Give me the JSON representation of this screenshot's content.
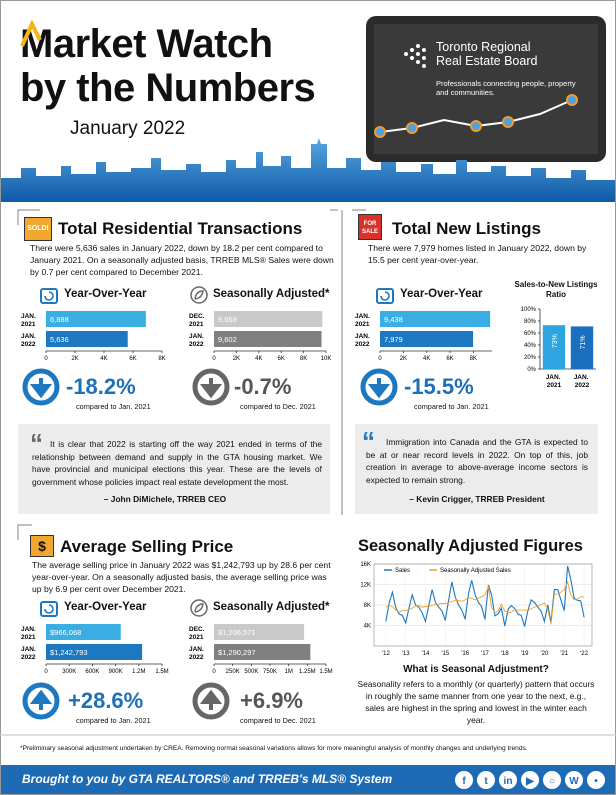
{
  "header": {
    "title_line1": "Market Watch",
    "title_line2": "by the Numbers",
    "date": "January 2022"
  },
  "logo": {
    "name_line1": "Toronto Regional",
    "name_line2": "Real Estate Board",
    "tagline": "Professionals connecting people, property and communities."
  },
  "transactions": {
    "icon": "SOLD!",
    "title": "Total Residential Transactions",
    "text": "There were 5,636 sales in January 2022, down by 18.2 per cent compared to January 2021. On a seasonally adjusted basis, TRREB MLS® Sales were down by 0.7 per cent compared to December 2021.",
    "yoy_label": "Year-Over-Year",
    "sa_label": "Seasonally Adjusted*",
    "yoy_change": "-18.2%",
    "yoy_note": "compared to Jan. 2021",
    "sa_change": "-0.7%",
    "sa_note": "compared to Dec. 2021"
  },
  "listings": {
    "icon": "FOR SALE",
    "title": "Total New Listings",
    "text": "There were 7,979 homes listed in January 2022, down by 15.5 per cent year-over-year.",
    "yoy_label": "Year-Over-Year",
    "yoy_change": "-15.5%",
    "yoy_note": "compared to Jan. 2021",
    "ratio_title": "Sales-to-New Listings Ratio"
  },
  "quotes": [
    {
      "text": "It is clear that 2022 is starting off the way 2021 ended in terms of the relationship between demand and supply in the GTA housing market. We have provincial and municipal elections this year. These are the levels of government whose policies impact real estate development the most.",
      "author": "– John DiMichele, TRREB CEO"
    },
    {
      "text": "Immigration into Canada and the GTA is expected to be at or near record levels in 2022. On top of this, job creation in average to above-average income sectors is expected to remain strong.",
      "author": "– Kevin Crigger, TRREB President"
    }
  ],
  "price": {
    "icon": "$",
    "title": "Average Selling Price",
    "text": "The average selling price in January 2022 was $1,242,793 up by 28.6 per cent year-over-year. On a seasonally adjusted basis, the average selling price was up by 6.9 per cent over December 2021.",
    "yoy_label": "Year-Over-Year",
    "sa_label": "Seasonally Adjusted*",
    "yoy_change": "+28.6%",
    "yoy_note": "compared to Jan. 2021",
    "sa_change": "+6.9%",
    "sa_note": "compared to Dec. 2021"
  },
  "seasonal": {
    "title": "Seasonally Adjusted Figures",
    "question": "What is Seasonal Adjustment?",
    "answer": "Seasonality refers to a monthly (or quarterly) pattern that occurs in roughly the same manner from one year to the next, e.g., sales are highest in the spring and lowest in the winter each year."
  },
  "footnote": "*Preliminary seasonal adjustment undertaken by CREA. Removing normal seasonal variations allows for more meaningful analysis of monthly changes and underlying trends.",
  "footer": "Brought to you by GTA REALTORS® and TRREB's MLS® System",
  "chart_data": [
    {
      "type": "bar",
      "orientation": "horizontal",
      "categories": [
        "JAN. 2021",
        "JAN. 2022"
      ],
      "values": [
        6888,
        5636
      ],
      "value_labels": [
        "6,888",
        "5,636"
      ],
      "colors": [
        "#3aaee3",
        "#1c78c0"
      ],
      "xlim": [
        0,
        8000
      ],
      "xticks": [
        0,
        {
          "value": 2000,
          "label": "2K"
        },
        {
          "value": 4000,
          "label": "4K"
        },
        {
          "value": 6000,
          "label": "6K"
        },
        {
          "value": 8000,
          "label": "8K"
        }
      ]
    },
    {
      "type": "bar",
      "orientation": "horizontal",
      "categories": [
        "DEC. 2021",
        "JAN. 2022"
      ],
      "values": [
        9668,
        9602
      ],
      "value_labels": [
        "9,668",
        "9,602"
      ],
      "colors": [
        "#c9c9c9",
        "#808080"
      ],
      "xlim": [
        0,
        10000
      ],
      "xticks": [
        0,
        {
          "value": 2000,
          "label": "2K"
        },
        {
          "value": 4000,
          "label": "4K"
        },
        {
          "value": 6000,
          "label": "6K"
        },
        {
          "value": 8000,
          "label": "8K"
        },
        {
          "value": 10000,
          "label": "10K"
        }
      ]
    },
    {
      "type": "bar",
      "orientation": "horizontal",
      "categories": [
        "JAN. 2021",
        "JAN. 2022"
      ],
      "values": [
        9438,
        7979
      ],
      "value_labels": [
        "9,438",
        "7,979"
      ],
      "colors": [
        "#3aaee3",
        "#1c78c0"
      ],
      "xlim": [
        0,
        9600
      ],
      "xticks": [
        0,
        {
          "value": 2000,
          "label": "2K"
        },
        {
          "value": 4000,
          "label": "4K"
        },
        {
          "value": 6000,
          "label": "6K"
        },
        {
          "value": 8000,
          "label": "8K"
        }
      ]
    },
    {
      "type": "bar",
      "orientation": "vertical",
      "categories": [
        "JAN. 2021",
        "JAN. 2022"
      ],
      "values": [
        73,
        71
      ],
      "value_labels": [
        "73%",
        "71%"
      ],
      "colors": [
        "#2ea5e0",
        "#1a6fbf"
      ],
      "ylim": [
        0,
        100
      ],
      "yticks": [
        {
          "value": 0,
          "label": "0%"
        },
        {
          "value": 20,
          "label": "20%"
        },
        {
          "value": 40,
          "label": "40%"
        },
        {
          "value": 60,
          "label": "60%"
        },
        {
          "value": 80,
          "label": "80%"
        },
        {
          "value": 100,
          "label": "100%"
        }
      ]
    },
    {
      "type": "bar",
      "orientation": "horizontal",
      "categories": [
        "JAN. 2021",
        "JAN. 2022"
      ],
      "values": [
        966068,
        1242793
      ],
      "value_labels": [
        "$966,068",
        "$1,242,793"
      ],
      "colors": [
        "#3aaee3",
        "#1c78c0"
      ],
      "xlim": [
        0,
        1500000
      ],
      "xticks": [
        0,
        {
          "value": 300000,
          "label": "300K"
        },
        {
          "value": 600000,
          "label": "600K"
        },
        {
          "value": 900000,
          "label": "900K"
        },
        {
          "value": 1200000,
          "label": "1.2M"
        },
        {
          "value": 1500000,
          "label": "1.5M"
        }
      ]
    },
    {
      "type": "bar",
      "orientation": "horizontal",
      "categories": [
        "DEC. 2021",
        "JAN. 2022"
      ],
      "values": [
        1206571,
        1290297
      ],
      "value_labels": [
        "$1,206,571",
        "$1,290,297"
      ],
      "colors": [
        "#c9c9c9",
        "#808080"
      ],
      "xlim": [
        0,
        1500000
      ],
      "xticks": [
        0,
        {
          "value": 250000,
          "label": "250K"
        },
        {
          "value": 500000,
          "label": "500K"
        },
        {
          "value": 750000,
          "label": "750K"
        },
        {
          "value": 1000000,
          "label": "1M"
        },
        {
          "value": 1250000,
          "label": "1.25M"
        },
        {
          "value": 1500000,
          "label": "1.5M"
        }
      ]
    },
    {
      "type": "line",
      "x": [
        2012.0,
        2012.17,
        2012.33,
        2012.5,
        2012.67,
        2012.83,
        2013.0,
        2013.17,
        2013.33,
        2013.5,
        2013.67,
        2013.83,
        2014.0,
        2014.17,
        2014.33,
        2014.5,
        2014.67,
        2014.83,
        2015.0,
        2015.17,
        2015.33,
        2015.5,
        2015.67,
        2015.83,
        2016.0,
        2016.17,
        2016.33,
        2016.5,
        2016.67,
        2016.83,
        2017.0,
        2017.17,
        2017.33,
        2017.5,
        2017.67,
        2017.83,
        2018.0,
        2018.17,
        2018.33,
        2018.5,
        2018.67,
        2018.83,
        2019.0,
        2019.17,
        2019.33,
        2019.5,
        2019.67,
        2019.83,
        2020.0,
        2020.17,
        2020.33,
        2020.5,
        2020.67,
        2020.83,
        2021.0,
        2021.17,
        2021.33,
        2021.5,
        2021.67,
        2021.83,
        2022.0
      ],
      "series": [
        {
          "name": "Sales",
          "color": "#1c78c0",
          "values": [
            4800,
            8500,
            10500,
            7500,
            6200,
            6000,
            4500,
            7500,
            10000,
            8000,
            7500,
            6500,
            4800,
            8000,
            11000,
            8500,
            7600,
            6800,
            5000,
            9000,
            12500,
            9500,
            8000,
            7000,
            5200,
            10200,
            12800,
            10000,
            8500,
            7700,
            5200,
            11900,
            10000,
            5900,
            6300,
            7400,
            3900,
            7200,
            7900,
            7300,
            6200,
            6000,
            3800,
            7000,
            9000,
            8500,
            7600,
            6800,
            4800,
            8000,
            4600,
            11000,
            11000,
            9000,
            6900,
            15600,
            13000,
            9300,
            8900,
            8800,
            5600
          ]
        },
        {
          "name": "Seasonally Adjusted Sales",
          "color": "#f0a030",
          "values": [
            7600,
            7900,
            7700,
            7000,
            6600,
            6900,
            6900,
            7100,
            7400,
            7800,
            7900,
            7600,
            7700,
            7700,
            8000,
            8100,
            8200,
            8300,
            8300,
            8500,
            8700,
            8900,
            8900,
            8700,
            9000,
            9400,
            9300,
            9000,
            9300,
            9600,
            10000,
            11500,
            7600,
            6500,
            6900,
            8200,
            6800,
            6500,
            6600,
            7100,
            7000,
            7000,
            7000,
            6900,
            7300,
            7600,
            7900,
            8000,
            8400,
            7200,
            4200,
            10000,
            10200,
            10500,
            11000,
            12500,
            10000,
            9000,
            9200,
            9600,
            9600
          ]
        }
      ],
      "xlim": [
        2011.4,
        2022.4
      ],
      "xticks": [
        {
          "value": 2012,
          "label": "'12"
        },
        {
          "value": 2013,
          "label": "'13"
        },
        {
          "value": 2014,
          "label": "'14"
        },
        {
          "value": 2015,
          "label": "'15"
        },
        {
          "value": 2016,
          "label": "'16"
        },
        {
          "value": 2017,
          "label": "'17"
        },
        {
          "value": 2018,
          "label": "'18"
        },
        {
          "value": 2019,
          "label": "'19"
        },
        {
          "value": 2020,
          "label": "'20"
        },
        {
          "value": 2021,
          "label": "'21"
        },
        {
          "value": 2022,
          "label": "'22"
        }
      ],
      "ylim": [
        0,
        16000
      ],
      "yticks": [
        {
          "value": 4000,
          "label": "4K"
        },
        {
          "value": 8000,
          "label": "8K"
        },
        {
          "value": 12000,
          "label": "12K"
        },
        {
          "value": 16000,
          "label": "16K"
        }
      ],
      "grid": true,
      "legend": "top"
    }
  ]
}
